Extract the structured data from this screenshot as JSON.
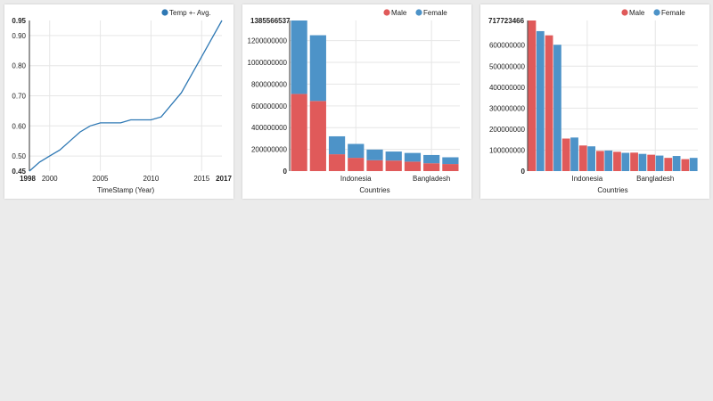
{
  "colors": {
    "line": "#2e78b4",
    "male": "#e05a5a",
    "female": "#4d93c8",
    "grid": "#e6e6e6",
    "axis": "#333333"
  },
  "chart_data": [
    {
      "type": "line",
      "legend": [
        "Temp +- Avg."
      ],
      "legend_placement": "top-right",
      "xlabel": "TimeStamp (Year)",
      "ylabel": "",
      "xlim": [
        1998,
        2017
      ],
      "ylim": [
        0.45,
        0.95
      ],
      "x_ticks": [
        "2000",
        "2005",
        "2010",
        "2015"
      ],
      "x_ticks_bold": [
        "1998",
        "2017"
      ],
      "y_ticks": [
        "0.50",
        "0.60",
        "0.70",
        "0.80",
        "0.90"
      ],
      "y_ticks_bold": [
        "0.45",
        "0.95"
      ],
      "grid": true,
      "series": [
        {
          "name": "Temp +- Avg.",
          "x": [
            1998,
            1999,
            2000,
            2001,
            2002,
            2003,
            2004,
            2005,
            2006,
            2007,
            2008,
            2009,
            2010,
            2011,
            2012,
            2013,
            2014,
            2015,
            2016,
            2017
          ],
          "y": [
            0.45,
            0.48,
            0.5,
            0.52,
            0.55,
            0.58,
            0.6,
            0.61,
            0.61,
            0.61,
            0.62,
            0.62,
            0.62,
            0.63,
            0.67,
            0.71,
            0.77,
            0.83,
            0.89,
            0.95
          ]
        }
      ]
    },
    {
      "type": "bar",
      "stacked": true,
      "legend": [
        "Male",
        "Female"
      ],
      "legend_placement": "top-right",
      "xlabel": "Countries",
      "ylabel": "",
      "x_tick_labels": [
        {
          "label": "Indonesia",
          "index": 3
        },
        {
          "label": "Bangladesh",
          "index": 7
        }
      ],
      "ylim": [
        0,
        1385566537
      ],
      "y_ticks": [
        "200000000",
        "400000000",
        "600000000",
        "800000000",
        "1000000000",
        "1200000000"
      ],
      "y_ticks_bold": [
        "0",
        "1385566537"
      ],
      "grid": true,
      "series": [
        {
          "name": "Male",
          "values": [
            710000000,
            645000000,
            155000000,
            122000000,
            100000000,
            97000000,
            87000000,
            72000000,
            65000000
          ]
        },
        {
          "name": "Female",
          "values": [
            675566537,
            605000000,
            165000000,
            128000000,
            98000000,
            83000000,
            80000000,
            76000000,
            62000000
          ]
        }
      ]
    },
    {
      "type": "bar",
      "stacked": false,
      "legend": [
        "Male",
        "Female"
      ],
      "legend_placement": "top-right",
      "xlabel": "Countries",
      "ylabel": "",
      "x_tick_labels": [
        {
          "label": "Indonesia",
          "index": 3
        },
        {
          "label": "Bangladesh",
          "index": 7
        }
      ],
      "ylim": [
        0,
        717723466
      ],
      "y_ticks": [
        "100000000",
        "200000000",
        "300000000",
        "400000000",
        "500000000",
        "600000000"
      ],
      "y_ticks_bold": [
        "0",
        "717723466"
      ],
      "grid": true,
      "series": [
        {
          "name": "Male",
          "values": [
            717723466,
            647000000,
            155000000,
            122000000,
            96000000,
            92000000,
            88000000,
            78000000,
            63000000,
            57000000
          ]
        },
        {
          "name": "Female",
          "values": [
            667000000,
            602000000,
            160000000,
            118000000,
            98000000,
            87000000,
            82000000,
            74000000,
            72000000,
            63000000
          ]
        }
      ]
    }
  ]
}
